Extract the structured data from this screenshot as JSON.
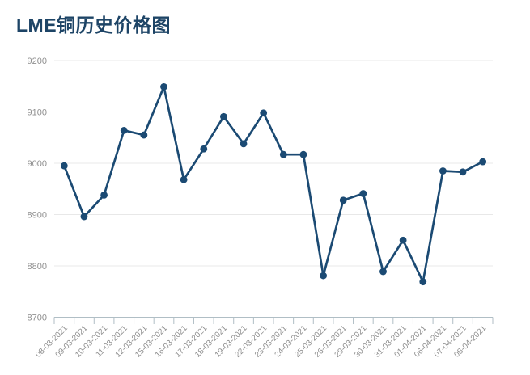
{
  "page": {
    "title": "LME铜历史价格图"
  },
  "chart_data": {
    "type": "line",
    "title": "LME铜历史价格图",
    "x": [
      "08-03-2021",
      "09-03-2021",
      "10-03-2021",
      "11-03-2021",
      "12-03-2021",
      "15-03-2021",
      "16-03-2021",
      "17-03-2021",
      "18-03-2021",
      "19-03-2021",
      "22-03-2021",
      "23-03-2021",
      "24-03-2021",
      "25-03-2021",
      "26-03-2021",
      "29-03-2021",
      "30-03-2021",
      "31-03-2021",
      "01-04-2021",
      "06-04-2021",
      "07-04-2021",
      "08-04-2021"
    ],
    "values": [
      8995,
      8896,
      8938,
      9064,
      9055,
      9149,
      8968,
      9028,
      9091,
      9038,
      9098,
      9017,
      9017,
      8781,
      8928,
      8941,
      8789,
      8850,
      8769,
      8985,
      8983,
      9003
    ],
    "xlabel": "",
    "ylabel": "",
    "ylim": [
      8700,
      9200
    ],
    "yticks": [
      8700,
      8800,
      8900,
      9000,
      9100,
      9200
    ],
    "grid": true,
    "legend": "none",
    "colors": {
      "line": "#1b4a73",
      "marker": "#1b4a73",
      "title": "#1d4466",
      "gridline": "#e8e8e8",
      "axis": "#b0bec5",
      "tick_label": "#8f8f8f"
    }
  }
}
